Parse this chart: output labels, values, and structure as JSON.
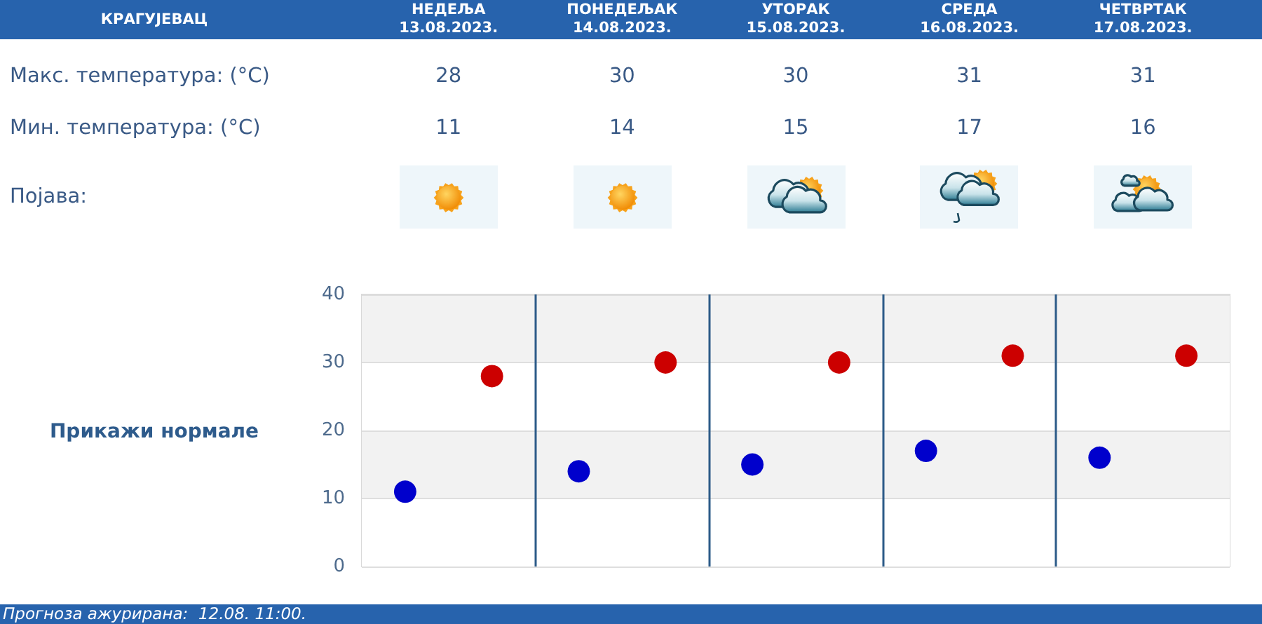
{
  "chart_data": {
    "type": "scatter",
    "title": "КРАГУЈЕВАЦ",
    "categories": [
      null,
      null,
      null,
      null,
      null
    ],
    "series": [
      {
        "color": "#cc0000",
        "values": [
          28,
          30,
          30,
          31,
          31
        ]
      },
      {
        "color": "#0000cc",
        "values": [
          11,
          14,
          15,
          17,
          16
        ]
      }
    ],
    "ylim": [
      0,
      40
    ],
    "yticks": [
      0,
      10,
      20,
      30,
      40
    ],
    "grid": true,
    "marker": "circle",
    "data_labels": true,
    "annotations": [
      "НЕДЕЉА 13.08.2023.",
      "ПОНЕДЕЉАК 14.08.2023.",
      "УТОРАК 15.08.2023.",
      "СРЕДА 16.08.2023.",
      "ЧЕТВРТАК 17.08.2023.",
      "Макс. температура: (°C)",
      "Мин. температура: (°C)",
      "Појава:",
      "Прикажи нормале",
      "Прогноза ажурирана:  12.08. 11:00."
    ]
  }
}
